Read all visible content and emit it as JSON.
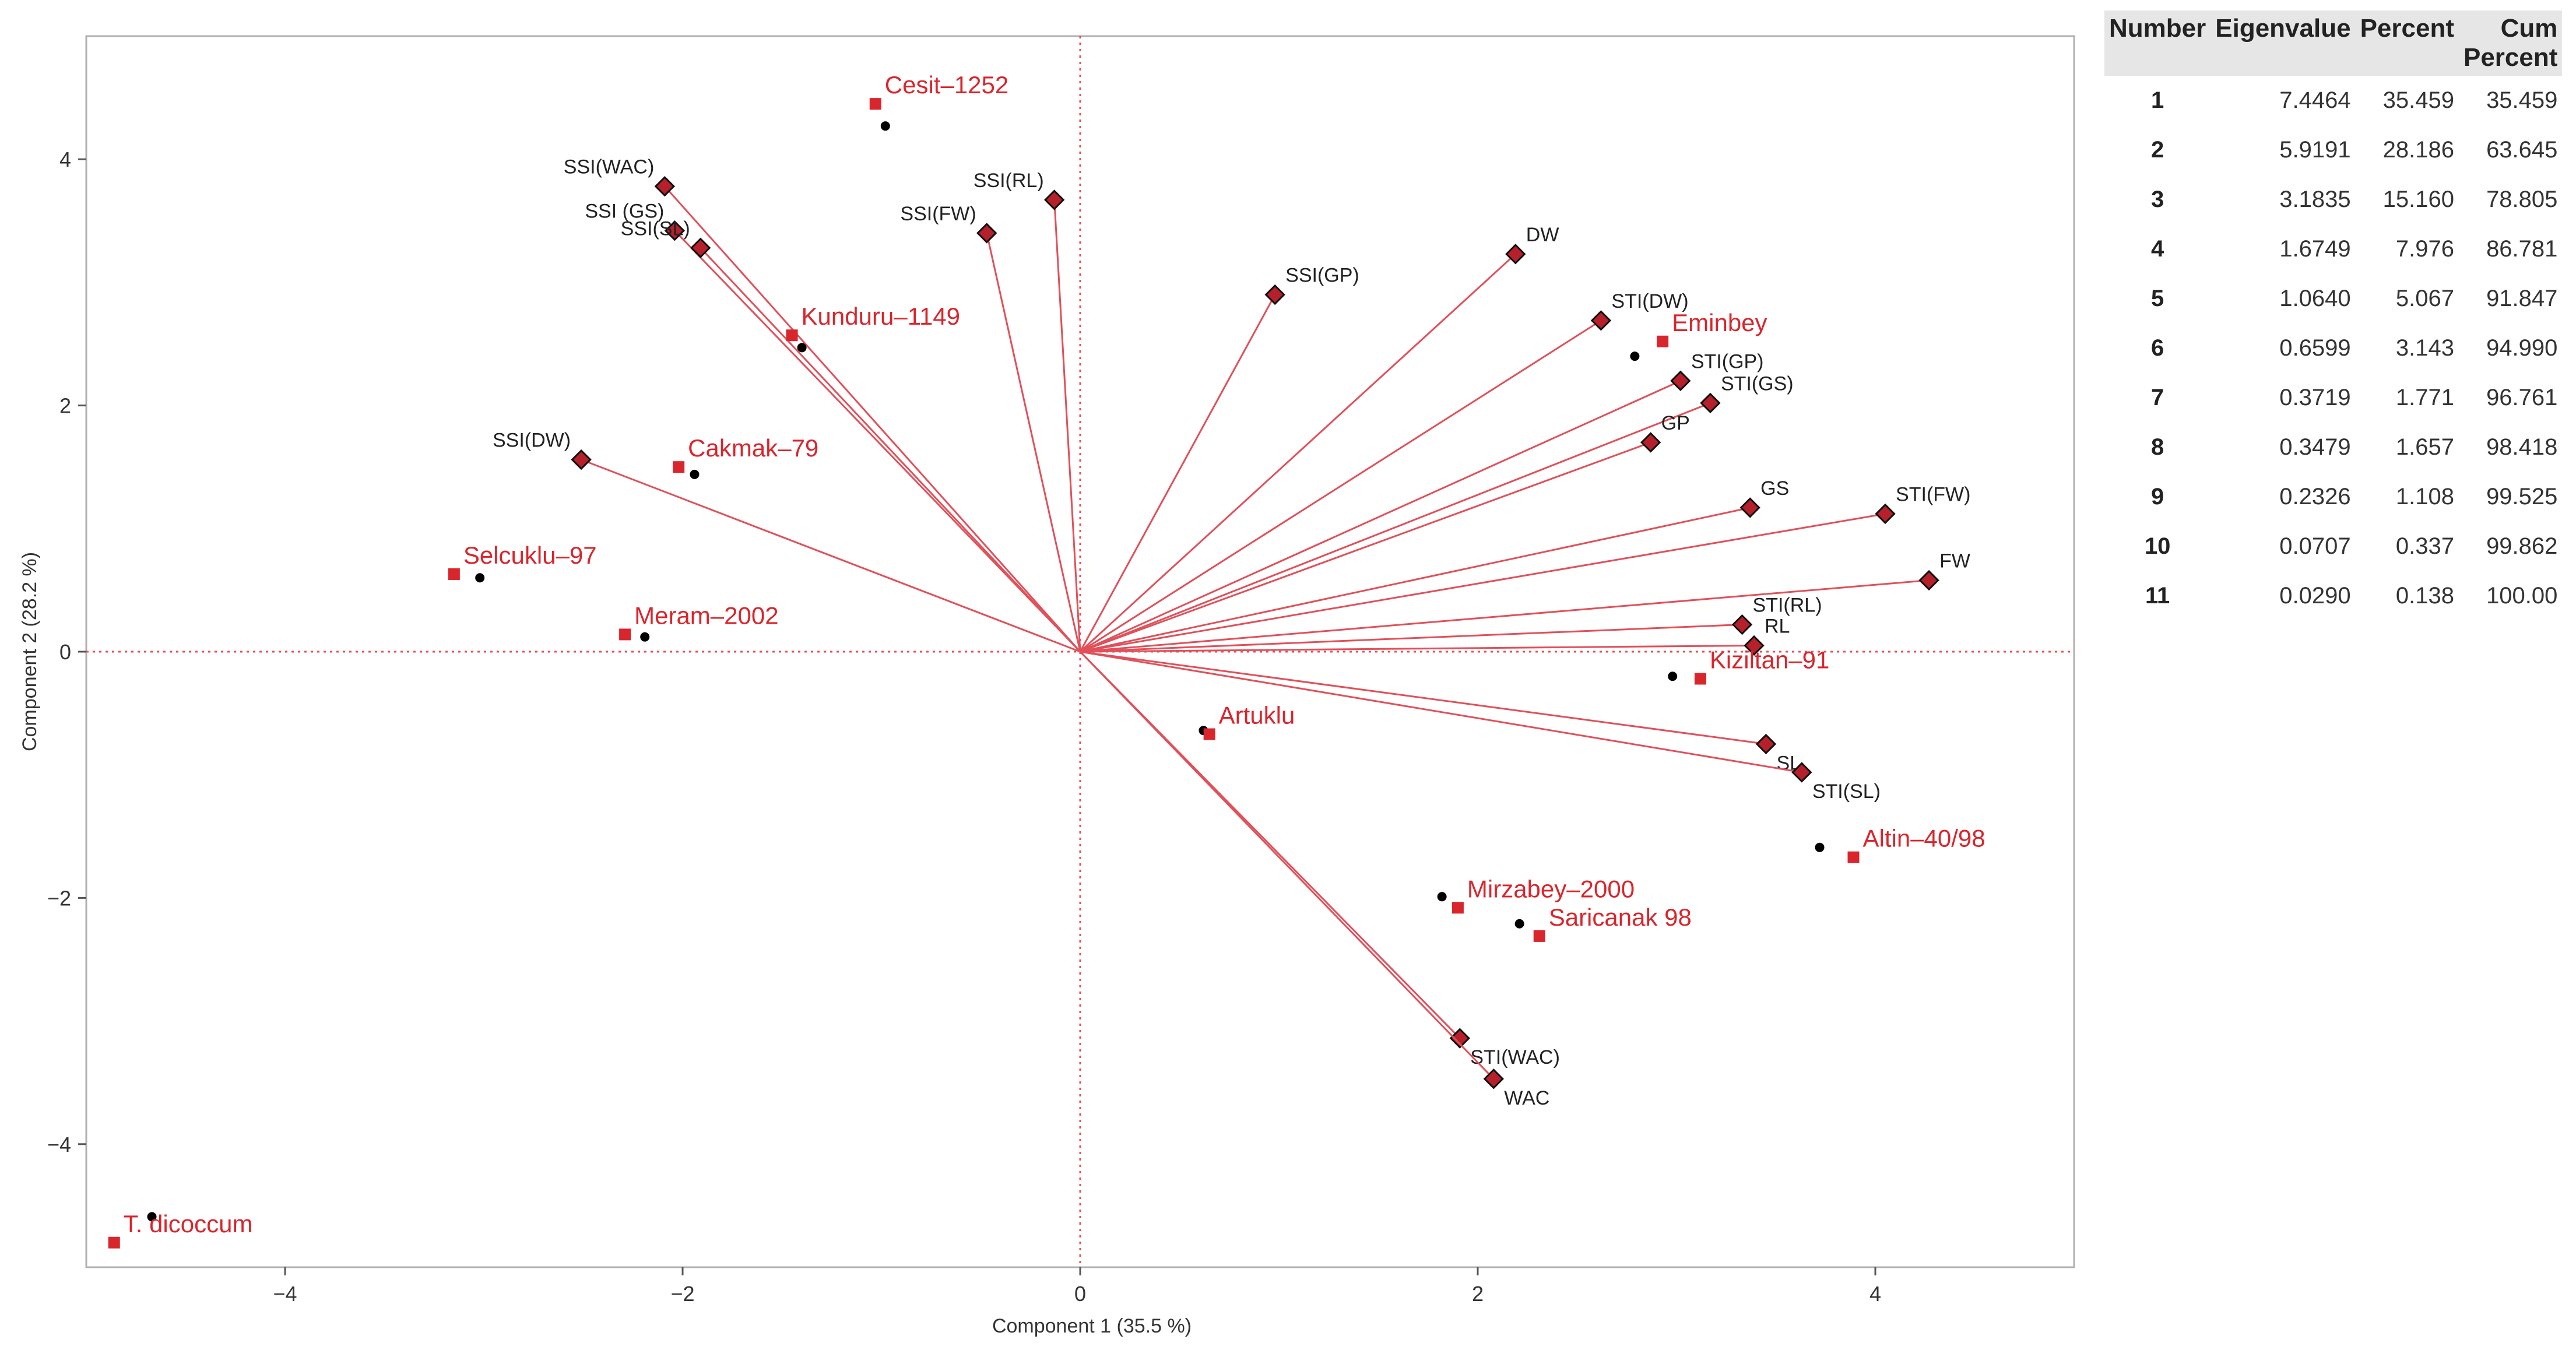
{
  "chart_data": {
    "type": "scatter",
    "subtype": "biplot",
    "title": "",
    "xlabel": "Component 1  (35.5 %)",
    "ylabel": "Component 2  (28.2 %)",
    "xlim": [
      -5,
      5
    ],
    "ylim": [
      -5,
      5
    ],
    "xticks": [
      -4,
      -2,
      0,
      2,
      4
    ],
    "yticks": [
      -4,
      -2,
      0,
      2,
      4
    ],
    "loadings": [
      {
        "name": "SSI(WAC)",
        "x": -2.09,
        "y": 3.78
      },
      {
        "name": "SSI (GS)",
        "x": -2.04,
        "y": 3.42
      },
      {
        "name": "SSI(SL)",
        "x": -1.91,
        "y": 3.28
      },
      {
        "name": "SSI(FW)",
        "x": -0.47,
        "y": 3.4
      },
      {
        "name": "SSI(RL)",
        "x": -0.13,
        "y": 3.67
      },
      {
        "name": "SSI(GP)",
        "x": 0.98,
        "y": 2.9
      },
      {
        "name": "SSI(DW)",
        "x": -2.51,
        "y": 1.56
      },
      {
        "name": "DW",
        "x": 2.19,
        "y": 3.23
      },
      {
        "name": "STI(DW)",
        "x": 2.62,
        "y": 2.69
      },
      {
        "name": "STI(GP)",
        "x": 3.02,
        "y": 2.2
      },
      {
        "name": "STI(GS)",
        "x": 3.17,
        "y": 2.02
      },
      {
        "name": "GP",
        "x": 2.87,
        "y": 1.7
      },
      {
        "name": "GS",
        "x": 3.37,
        "y": 1.17
      },
      {
        "name": "STI(FW)",
        "x": 4.05,
        "y": 1.12
      },
      {
        "name": "FW",
        "x": 4.27,
        "y": 0.58
      },
      {
        "name": "STI(RL)",
        "x": 3.33,
        "y": 0.22
      },
      {
        "name": "RL",
        "x": 3.39,
        "y": 0.05
      },
      {
        "name": "SL",
        "x": 3.45,
        "y": -0.75
      },
      {
        "name": "STI(SL)",
        "x": 3.63,
        "y": -0.98
      },
      {
        "name": "STI(WAC)",
        "x": 1.91,
        "y": -3.14
      },
      {
        "name": "WAC",
        "x": 2.08,
        "y": -3.47
      }
    ],
    "genotypes": [
      {
        "name": "Cesit–1252",
        "x": -1.03,
        "y": 4.45,
        "dot_x": -0.98,
        "dot_y": 4.27
      },
      {
        "name": "Kunduru–1149",
        "x": -1.45,
        "y": 2.57,
        "dot_x": -1.4,
        "dot_y": 2.47
      },
      {
        "name": "Cakmak–79",
        "x": -2.02,
        "y": 1.5,
        "dot_x": -1.94,
        "dot_y": 1.44
      },
      {
        "name": "Selcuklu–97",
        "x": -3.15,
        "y": 0.63,
        "dot_x": -3.02,
        "dot_y": 0.6
      },
      {
        "name": "Meram–2002",
        "x": -2.29,
        "y": 0.14,
        "dot_x": -2.19,
        "dot_y": 0.12
      },
      {
        "name": "Eminbey",
        "x": 2.93,
        "y": 2.52,
        "dot_x": 2.79,
        "dot_y": 2.4
      },
      {
        "name": "Kiziltan–91",
        "x": 3.12,
        "y": -0.22,
        "dot_x": 2.98,
        "dot_y": -0.2
      },
      {
        "name": "Artuklu",
        "x": 0.65,
        "y": -0.67,
        "dot_x": 0.62,
        "dot_y": -0.64
      },
      {
        "name": "Altin–40/98",
        "x": 3.89,
        "y": -1.67,
        "dot_x": 3.72,
        "dot_y": -1.59
      },
      {
        "name": "Mirzabey–2000",
        "x": 1.9,
        "y": -2.08,
        "dot_x": 1.82,
        "dot_y": -1.99
      },
      {
        "name": "Saricanak 98",
        "x": 2.31,
        "y": -2.31,
        "dot_x": 2.21,
        "dot_y": -2.21
      },
      {
        "name": "T. dicoccum",
        "x": -4.86,
        "y": -4.8,
        "dot_x": -4.67,
        "dot_y": -4.59
      }
    ],
    "eigen_table": {
      "headers": [
        "Number",
        "Eigenvalue",
        "Percent",
        "Cum Percent"
      ],
      "rows": [
        [
          "1",
          "7.4464",
          "35.459",
          "35.459"
        ],
        [
          "2",
          "5.9191",
          "28.186",
          "63.645"
        ],
        [
          "3",
          "3.1835",
          "15.160",
          "78.805"
        ],
        [
          "4",
          "1.6749",
          "7.976",
          "86.781"
        ],
        [
          "5",
          "1.0640",
          "5.067",
          "91.847"
        ],
        [
          "6",
          "0.6599",
          "3.143",
          "94.990"
        ],
        [
          "7",
          "0.3719",
          "1.771",
          "96.761"
        ],
        [
          "8",
          "0.3479",
          "1.657",
          "98.418"
        ],
        [
          "9",
          "0.2326",
          "1.108",
          "99.525"
        ],
        [
          "10",
          "0.0707",
          "0.337",
          "99.862"
        ],
        [
          "11",
          "0.0290",
          "0.138",
          "100.00"
        ]
      ]
    },
    "colors": {
      "vector": "#e0505a",
      "genotype": "#d9252c",
      "dot": "#000000",
      "reference_line": "#e0505a"
    }
  }
}
